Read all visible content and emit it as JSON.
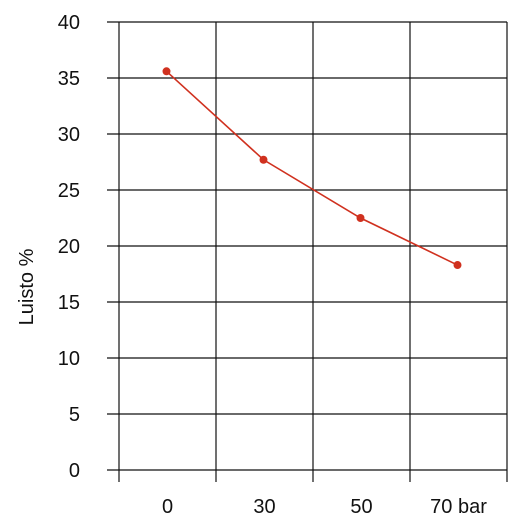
{
  "chart_data": {
    "type": "line",
    "title": "",
    "xlabel": "",
    "ylabel": "Luisto %",
    "categories": [
      "0",
      "30",
      "50",
      "70 bar"
    ],
    "ylim": [
      0,
      40
    ],
    "yticks": [
      "0",
      "5",
      "10",
      "15",
      "20",
      "25",
      "30",
      "35",
      "40"
    ],
    "grid": true,
    "series": [
      {
        "values": [
          35.6,
          27.7,
          22.5,
          18.3
        ],
        "color": "#d0311f"
      }
    ]
  }
}
